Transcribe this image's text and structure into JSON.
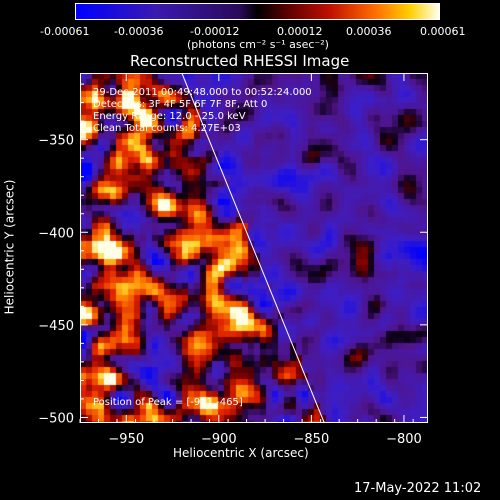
{
  "colorbar": {
    "ticks": [
      "-0.00061",
      "-0.00036",
      "-0.00012",
      "0.00012",
      "0.00036",
      "0.00061"
    ],
    "unit_label": "(photons cm⁻² s⁻¹ asec⁻²)"
  },
  "title": "Reconstructed RHESSI Image",
  "annotations": {
    "time": "29-Dec-2011 00:49:48.000 to 00:52:24.000",
    "detectors": "Detectors: 3F 4F 5F 6F 7F 8F, Att 0",
    "energy": "Energy Range: 12.0 - 25.0 keV",
    "clean": "Clean     Total counts: 4.27E+03",
    "peak": "Position of Peak = [-921,-465]"
  },
  "footer_timestamp": "17-May-2022 11:02",
  "chart_data": {
    "type": "heatmap",
    "title": "Reconstructed RHESSI Image",
    "xlabel": "Heliocentric X (arcsec)",
    "ylabel": "Heliocentric Y (arcsec)",
    "xlim": [
      -975,
      -787
    ],
    "ylim": [
      -503,
      -314
    ],
    "xticks": [
      -950,
      -900,
      -850,
      -800
    ],
    "yticks": [
      -350,
      -400,
      -450,
      -500
    ],
    "xtick_labels": [
      "−950",
      "−900",
      "−850",
      "−800"
    ],
    "ytick_labels": [
      "−350",
      "−400",
      "−450",
      "−500"
    ],
    "colorbar_range": [
      -0.00061,
      0.00061
    ],
    "peak_position": [
      -921,
      -465
    ],
    "limb_line": [
      [
        -920,
        -314
      ],
      [
        -843,
        -503
      ]
    ],
    "colors": {
      "limb": "#ffffff",
      "axes": "#ffffff"
    }
  }
}
